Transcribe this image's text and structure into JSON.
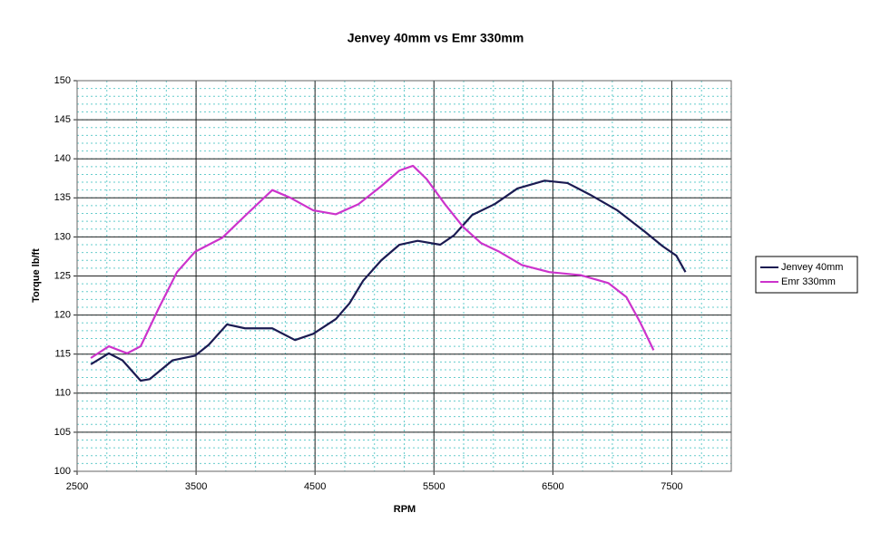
{
  "chart_data": {
    "type": "line",
    "title": "Jenvey 40mm vs Emr 330mm",
    "x_label": "RPM",
    "y_label": "Torque lb/ft",
    "xlim": [
      2500,
      8000
    ],
    "xticks": [
      2500,
      3500,
      4500,
      5500,
      6500,
      7500
    ],
    "ylim": [
      100,
      150
    ],
    "yticks": [
      100,
      105,
      110,
      115,
      120,
      125,
      130,
      135,
      140,
      145,
      150
    ],
    "grid": true,
    "legend": "right",
    "series": [
      {
        "name": "Jenvey 40mm",
        "color": "#1b1b52",
        "x": [
          2615,
          2767,
          2882,
          3034,
          3111,
          3302,
          3492,
          3607,
          3760,
          3912,
          4141,
          4332,
          4485,
          4676,
          4790,
          4905,
          5057,
          5210,
          5363,
          5553,
          5668,
          5821,
          6011,
          6202,
          6431,
          6622,
          6813,
          7042,
          7271,
          7424,
          7538,
          7615
        ],
        "values": [
          113.7,
          115.1,
          114.2,
          111.6,
          111.8,
          114.2,
          114.8,
          116.2,
          118.8,
          118.3,
          118.3,
          116.8,
          117.6,
          119.5,
          121.5,
          124.4,
          127.0,
          129.0,
          129.5,
          129.0,
          130.2,
          132.8,
          134.2,
          136.2,
          137.2,
          136.9,
          135.4,
          133.4,
          130.7,
          128.8,
          127.6,
          125.5
        ]
      },
      {
        "name": "Emr 330mm",
        "color": "#cc33cc",
        "x": [
          2615,
          2767,
          2920,
          3034,
          3187,
          3340,
          3492,
          3721,
          3912,
          4141,
          4294,
          4485,
          4676,
          4866,
          5057,
          5210,
          5324,
          5439,
          5592,
          5744,
          5897,
          6050,
          6240,
          6469,
          6737,
          6966,
          7118,
          7233,
          7347
        ],
        "values": [
          114.5,
          116.0,
          115.1,
          116.0,
          120.9,
          125.5,
          128.1,
          129.9,
          132.7,
          136.0,
          135.0,
          133.4,
          132.9,
          134.2,
          136.5,
          138.5,
          139.1,
          137.4,
          134.2,
          131.3,
          129.2,
          128.1,
          126.4,
          125.5,
          125.1,
          124.1,
          122.3,
          119.1,
          115.5
        ]
      }
    ]
  }
}
